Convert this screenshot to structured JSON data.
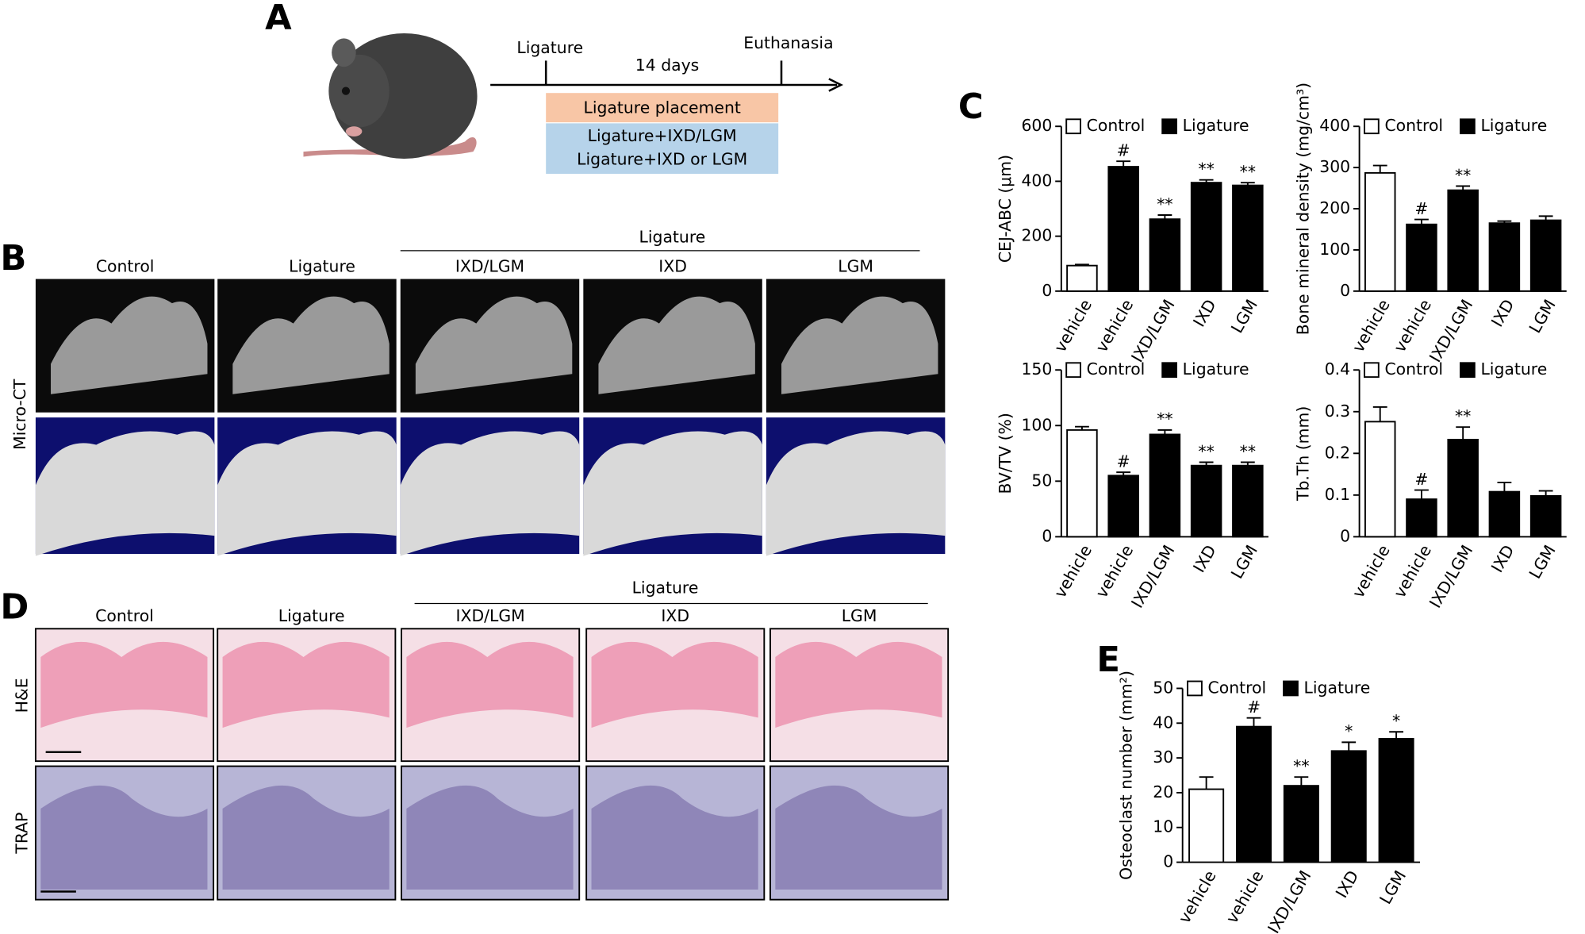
{
  "panel_labels": [
    "A",
    "B",
    "C",
    "D",
    "E"
  ],
  "timeline": {
    "start": "Ligature",
    "duration": "14 days",
    "end": "Euthanasia",
    "box1": "Ligature placement",
    "box2": [
      "Ligature+IXD/LGM",
      "Ligature+IXD  or LGM"
    ]
  },
  "micro_ct": {
    "group_label": "Ligature",
    "columns": [
      "Control",
      "Ligature",
      "IXD/LGM",
      "IXD",
      "LGM"
    ],
    "row_label": "Micro-CT"
  },
  "histology": {
    "group_label": "Ligature",
    "columns": [
      "Control",
      "Ligature",
      "IXD/LGM",
      "IXD",
      "LGM"
    ],
    "rows": [
      "H&E",
      "TRAP"
    ]
  },
  "chart_data": [
    {
      "type": "bar",
      "ylabel": "CEJ-ABC (μm)",
      "categories": [
        "vehicle",
        "vehicle",
        "IXD/LGM",
        "IXD",
        "LGM"
      ],
      "series": [
        {
          "name": "Control",
          "color": "#ffffff",
          "values": [
            93,
            null,
            null,
            null,
            null
          ],
          "errors": [
            4,
            null,
            null,
            null,
            null
          ]
        },
        {
          "name": "Ligature",
          "color": "#000000",
          "values": [
            null,
            453,
            262,
            395,
            385
          ],
          "errors": [
            null,
            20,
            15,
            10,
            10
          ]
        }
      ],
      "annotations": [
        null,
        "#",
        "**",
        "**",
        "**"
      ],
      "ylim": [
        0,
        600
      ],
      "yticks": [
        0,
        200,
        400,
        600
      ]
    },
    {
      "type": "bar",
      "ylabel": "Bone mineral density (mg/cm³)",
      "categories": [
        "vehicle",
        "vehicle",
        "IXD/LGM",
        "IXD",
        "LGM"
      ],
      "series": [
        {
          "name": "Control",
          "color": "#ffffff",
          "values": [
            287,
            null,
            null,
            null,
            null
          ],
          "errors": [
            18,
            null,
            null,
            null,
            null
          ]
        },
        {
          "name": "Ligature",
          "color": "#000000",
          "values": [
            null,
            162,
            245,
            165,
            172
          ],
          "errors": [
            null,
            12,
            10,
            5,
            10
          ]
        }
      ],
      "annotations": [
        null,
        "#",
        "**",
        null,
        null
      ],
      "ylim": [
        0,
        400
      ],
      "yticks": [
        0,
        100,
        200,
        300,
        400
      ]
    },
    {
      "type": "bar",
      "ylabel": "BV/TV (%)",
      "categories": [
        "vehicle",
        "vehicle",
        "IXD/LGM",
        "IXD",
        "LGM"
      ],
      "series": [
        {
          "name": "Control",
          "color": "#ffffff",
          "values": [
            96,
            null,
            null,
            null,
            null
          ],
          "errors": [
            3,
            null,
            null,
            null,
            null
          ]
        },
        {
          "name": "Ligature",
          "color": "#000000",
          "values": [
            null,
            55,
            92,
            64,
            64
          ],
          "errors": [
            null,
            3,
            4,
            3,
            3
          ]
        }
      ],
      "annotations": [
        null,
        "#",
        "**",
        "**",
        "**"
      ],
      "ylim": [
        0,
        150
      ],
      "yticks": [
        0,
        50,
        100,
        150
      ]
    },
    {
      "type": "bar",
      "ylabel": "Tb.Th (mm)",
      "categories": [
        "vehicle",
        "vehicle",
        "IXD/LGM",
        "IXD",
        "LGM"
      ],
      "series": [
        {
          "name": "Control",
          "color": "#ffffff",
          "values": [
            0.276,
            null,
            null,
            null,
            null
          ],
          "errors": [
            0.035,
            null,
            null,
            null,
            null
          ]
        },
        {
          "name": "Ligature",
          "color": "#000000",
          "values": [
            null,
            0.09,
            0.233,
            0.108,
            0.098
          ],
          "errors": [
            null,
            0.022,
            0.03,
            0.022,
            0.012
          ]
        }
      ],
      "annotations": [
        null,
        "#",
        "**",
        null,
        null
      ],
      "ylim": [
        0,
        0.4
      ],
      "yticks": [
        0,
        0.1,
        0.2,
        0.3,
        0.4
      ]
    },
    {
      "type": "bar",
      "ylabel": "Osteoclast number (mm²)",
      "categories": [
        "vehicle",
        "vehicle",
        "IXD/LGM",
        "IXD",
        "LGM"
      ],
      "series": [
        {
          "name": "Control",
          "color": "#ffffff",
          "values": [
            21,
            null,
            null,
            null,
            null
          ],
          "errors": [
            3.5,
            null,
            null,
            null,
            null
          ]
        },
        {
          "name": "Ligature",
          "color": "#000000",
          "values": [
            null,
            39,
            22,
            32,
            35.5
          ],
          "errors": [
            null,
            2.5,
            2.5,
            2.5,
            2
          ]
        }
      ],
      "annotations": [
        null,
        "#",
        "**",
        "*",
        "*"
      ],
      "ylim": [
        0,
        50
      ],
      "yticks": [
        0,
        10,
        20,
        30,
        40,
        50
      ]
    }
  ]
}
